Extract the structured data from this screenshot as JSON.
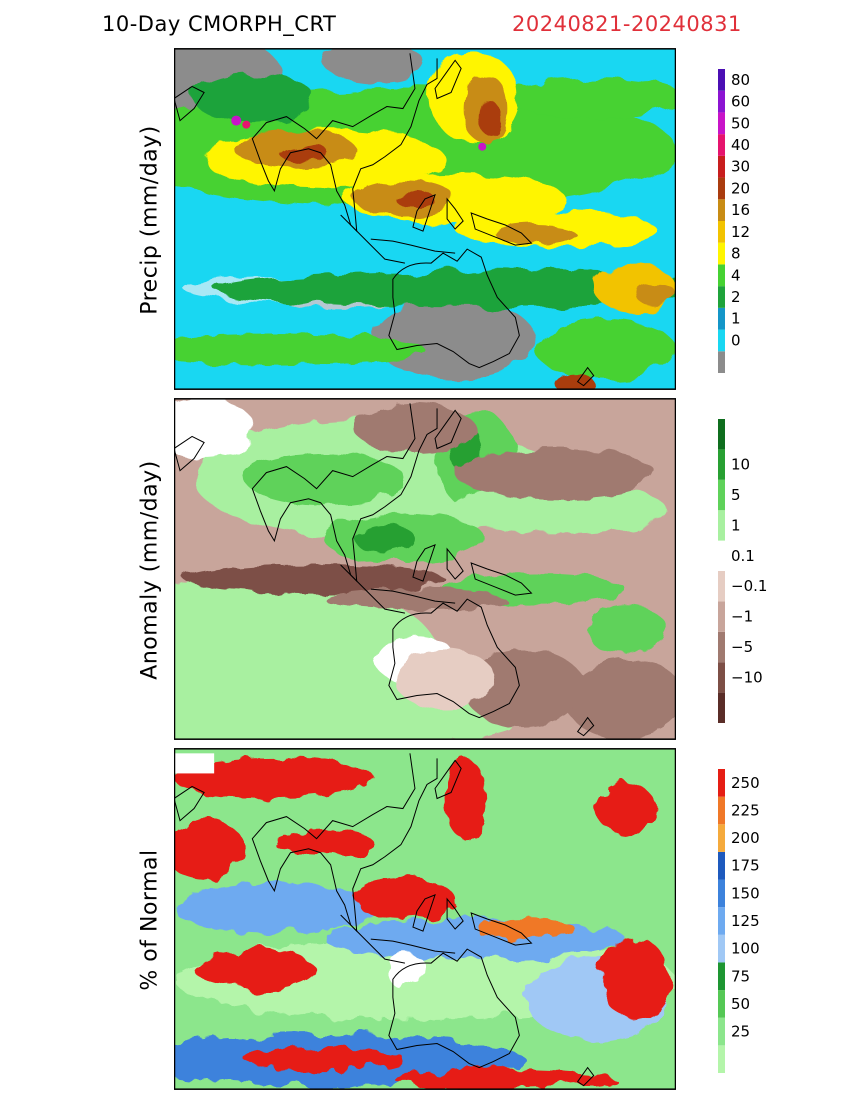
{
  "header": {
    "title": "10-Day CMORPH_CRT",
    "date_range": "20240821-20240831"
  },
  "panels": [
    {
      "ylabel": "Precip (mm/day)",
      "colorbar": [
        {
          "label": "",
          "color": "#8c8c8c"
        },
        {
          "label": "0",
          "color": "#19d7f2"
        },
        {
          "label": "1",
          "color": "#1496c8"
        },
        {
          "label": "2",
          "color": "#1fa33b"
        },
        {
          "label": "4",
          "color": "#46d232"
        },
        {
          "label": "8",
          "color": "#fff500"
        },
        {
          "label": "12",
          "color": "#f2c300"
        },
        {
          "label": "16",
          "color": "#c88c14"
        },
        {
          "label": "20",
          "color": "#aa3c0f"
        },
        {
          "label": "30",
          "color": "#c81e1e"
        },
        {
          "label": "40",
          "color": "#e6146e"
        },
        {
          "label": "50",
          "color": "#c814c8"
        },
        {
          "label": "60",
          "color": "#8c14d2"
        },
        {
          "label": "80",
          "color": "#4b0fb4"
        }
      ]
    },
    {
      "ylabel": "Anomaly (mm/day)",
      "colorbar": [
        {
          "label": "",
          "color": "#5a2d28"
        },
        {
          "label": "-10",
          "color": "#7d4f46"
        },
        {
          "label": "-5",
          "color": "#a07a70"
        },
        {
          "label": "-1",
          "color": "#c8a59b"
        },
        {
          "label": "-0.1",
          "color": "#e6cdc3"
        },
        {
          "label": "0.1",
          "color": "#ffffff"
        },
        {
          "label": "1",
          "color": "#a8f0a0"
        },
        {
          "label": "5",
          "color": "#5fd25a"
        },
        {
          "label": "10",
          "color": "#28a032"
        },
        {
          "label": "",
          "color": "#0f6e1e"
        }
      ]
    },
    {
      "ylabel": "% of Normal",
      "colorbar": [
        {
          "label": "",
          "color": "#b4f5aa"
        },
        {
          "label": "25",
          "color": "#8ce68c"
        },
        {
          "label": "50",
          "color": "#55c855"
        },
        {
          "label": "75",
          "color": "#1e9632"
        },
        {
          "label": "100",
          "color": "#a0c8f5"
        },
        {
          "label": "125",
          "color": "#6eaaf0"
        },
        {
          "label": "150",
          "color": "#3c82dc"
        },
        {
          "label": "175",
          "color": "#1e5abe"
        },
        {
          "label": "200",
          "color": "#f5aa3c"
        },
        {
          "label": "225",
          "color": "#f07828"
        },
        {
          "label": "250",
          "color": "#e61e14"
        }
      ]
    }
  ]
}
